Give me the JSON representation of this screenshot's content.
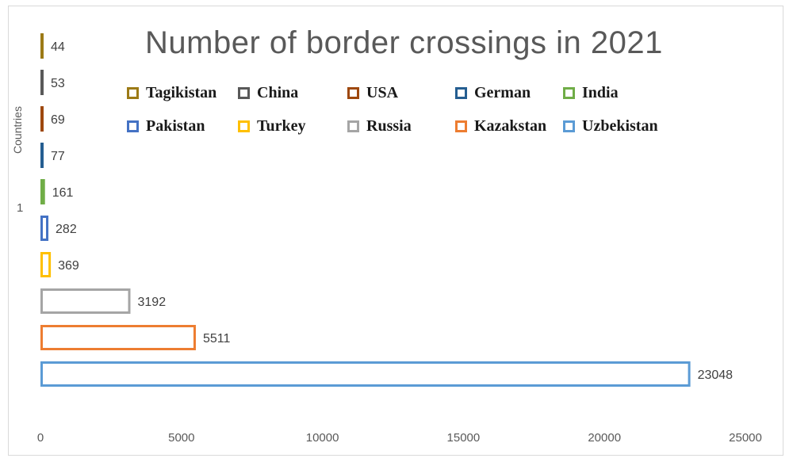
{
  "chart_data": {
    "type": "bar",
    "orientation": "horizontal",
    "title": "Number of border crossings in 2021",
    "ylabel": "Countries",
    "category_label": "1",
    "xlim": [
      0,
      25000
    ],
    "xticks": [
      "0",
      "5000",
      "10000",
      "15000",
      "20000",
      "25000"
    ],
    "grid": false,
    "legend_position": "top-center",
    "series": [
      {
        "name": "Tagikistan",
        "value": 44,
        "label": "44",
        "color": "#9c7a16"
      },
      {
        "name": "China",
        "value": 53,
        "label": "53",
        "color": "#595959"
      },
      {
        "name": "USA",
        "value": 69,
        "label": "69",
        "color": "#9e480e"
      },
      {
        "name": "German",
        "value": 77,
        "label": "77",
        "color": "#255e91"
      },
      {
        "name": "India",
        "value": 161,
        "label": "161",
        "color": "#70ad47"
      },
      {
        "name": "Pakistan",
        "value": 282,
        "label": "282",
        "color": "#4472c4"
      },
      {
        "name": "Turkey",
        "value": 369,
        "label": "369",
        "color": "#ffc000"
      },
      {
        "name": "Russia",
        "value": 3192,
        "label": "3192",
        "color": "#a5a5a5"
      },
      {
        "name": "Kazakstan",
        "value": 5511,
        "label": "5511",
        "color": "#ed7d31"
      },
      {
        "name": "Uzbekistan",
        "value": 23048,
        "label": "23048",
        "color": "#5b9bd5"
      }
    ],
    "legend_rows": [
      [
        "Tagikistan",
        "China",
        "USA",
        "German",
        "India"
      ],
      [
        "Pakistan",
        "Turkey",
        "Russia",
        "Kazakstan",
        "Uzbekistan"
      ]
    ]
  }
}
